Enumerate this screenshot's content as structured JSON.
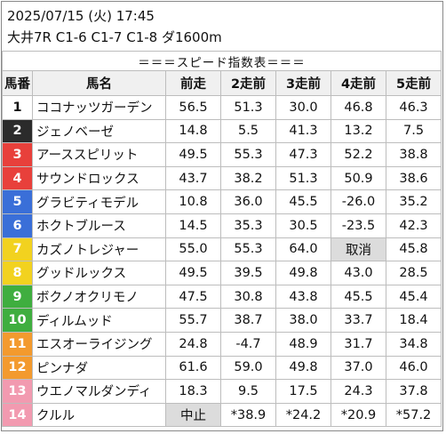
{
  "header": {
    "date_line": "2025/07/15 (火) 17:45",
    "race_line": "大井7R C1-6 C1-7 C1-8 ダ1600m"
  },
  "table": {
    "title": "＝＝＝スピード指数表＝＝＝",
    "columns": [
      "馬番",
      "馬名",
      "前走",
      "2走前",
      "3走前",
      "4走前",
      "5走前"
    ],
    "rows": [
      {
        "num": "1",
        "name": "ココナッツガーデン",
        "values": [
          "56.5",
          "51.3",
          "30.0",
          "46.8",
          "46.3"
        ],
        "num_color": "#ffffff",
        "num_text_color": "#111111"
      },
      {
        "num": "2",
        "name": "ジェノベーゼ",
        "values": [
          "14.8",
          "5.5",
          "41.3",
          "13.2",
          "7.5"
        ],
        "num_color": "#2b2b2b",
        "num_text_color": "#ffffff"
      },
      {
        "num": "3",
        "name": "アーススピリット",
        "values": [
          "49.5",
          "55.3",
          "47.3",
          "52.2",
          "38.8"
        ],
        "num_color": "#e8403b",
        "num_text_color": "#ffffff"
      },
      {
        "num": "4",
        "name": "サウンドロックス",
        "values": [
          "43.7",
          "38.2",
          "51.3",
          "50.9",
          "38.6"
        ],
        "num_color": "#e8403b",
        "num_text_color": "#ffffff"
      },
      {
        "num": "5",
        "name": "グラビティモデル",
        "values": [
          "10.8",
          "36.0",
          "45.5",
          "-26.0",
          "35.2"
        ],
        "num_color": "#3a6fd8",
        "num_text_color": "#ffffff"
      },
      {
        "num": "6",
        "name": "ホクトブルース",
        "values": [
          "14.5",
          "35.3",
          "30.5",
          "-23.5",
          "42.3"
        ],
        "num_color": "#3a6fd8",
        "num_text_color": "#ffffff"
      },
      {
        "num": "7",
        "name": "カズノトレジャー",
        "values": [
          "55.0",
          "55.3",
          "64.0",
          "取消",
          "45.8"
        ],
        "num_color": "#f2d21f",
        "num_text_color": "#ffffff"
      },
      {
        "num": "8",
        "name": "グッドルックス",
        "values": [
          "49.5",
          "39.5",
          "49.8",
          "43.0",
          "28.5"
        ],
        "num_color": "#f2d21f",
        "num_text_color": "#ffffff"
      },
      {
        "num": "9",
        "name": "ボクノオクリモノ",
        "values": [
          "47.5",
          "30.8",
          "43.8",
          "45.5",
          "45.4"
        ],
        "num_color": "#3fae3f",
        "num_text_color": "#ffffff"
      },
      {
        "num": "10",
        "name": "ディルムッド",
        "values": [
          "55.7",
          "38.7",
          "38.0",
          "33.7",
          "18.4"
        ],
        "num_color": "#3fae3f",
        "num_text_color": "#ffffff"
      },
      {
        "num": "11",
        "name": "エスオーライジング",
        "values": [
          "24.8",
          "-4.7",
          "48.9",
          "31.7",
          "34.8"
        ],
        "num_color": "#f39a2e",
        "num_text_color": "#ffffff"
      },
      {
        "num": "12",
        "name": "ピンナダ",
        "values": [
          "61.6",
          "59.0",
          "49.8",
          "37.0",
          "46.0"
        ],
        "num_color": "#f39a2e",
        "num_text_color": "#ffffff"
      },
      {
        "num": "13",
        "name": "ウエノマルダンディ",
        "values": [
          "18.3",
          "9.5",
          "17.5",
          "24.3",
          "37.8"
        ],
        "num_color": "#f29ab0",
        "num_text_color": "#ffffff"
      },
      {
        "num": "14",
        "name": "クルル",
        "values": [
          "中止",
          "*38.9",
          "*24.2",
          "*20.9",
          "*57.2"
        ],
        "num_color": "#f29ab0",
        "num_text_color": "#ffffff"
      }
    ],
    "grey_cell_values": [
      "取消",
      "中止"
    ],
    "grey_cell_color": "#dcdcdc"
  }
}
